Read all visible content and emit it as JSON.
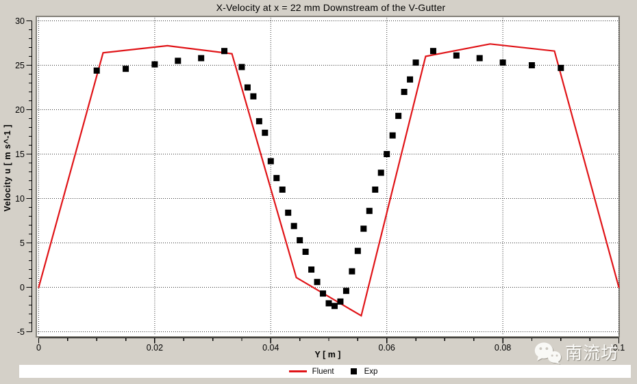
{
  "window": {
    "background_color": "#d4d0c8",
    "plot_background_color": "#ffffff"
  },
  "chart_data": {
    "type": "line",
    "title": "X-Velocity at x = 22 mm Downstream of the V-Gutter",
    "xlabel": "Y [ m ]",
    "ylabel": "Velocity u [ m s^-1 ]",
    "xlim": [
      0,
      0.1
    ],
    "ylim": [
      -5,
      30
    ],
    "x_major_ticks": [
      0,
      0.02,
      0.04,
      0.06,
      0.08,
      0.1
    ],
    "x_tick_labels": [
      "0",
      "0.02",
      "0.04",
      "0.06",
      "0.08",
      "0.1"
    ],
    "x_minor_step": 0.005,
    "y_major_ticks": [
      -5,
      0,
      5,
      10,
      15,
      20,
      25,
      30
    ],
    "y_tick_labels": [
      "-5",
      "0",
      "5",
      "10",
      "15",
      "20",
      "25",
      "30"
    ],
    "y_minor_step": 1,
    "grid": "major-only-dotted-black",
    "legend_position": "bottom-center",
    "series": [
      {
        "name": "Fluent",
        "type": "line",
        "color": "#e01317",
        "points": [
          [
            0,
            0
          ],
          [
            0.0111,
            26.4
          ],
          [
            0.0222,
            27.2
          ],
          [
            0.0333,
            26.3
          ],
          [
            0.0444,
            1.1
          ],
          [
            0.0556,
            -3.2
          ],
          [
            0.0667,
            26.0
          ],
          [
            0.0778,
            27.4
          ],
          [
            0.0889,
            26.6
          ],
          [
            0.1,
            0
          ]
        ]
      },
      {
        "name": "Exp",
        "type": "scatter",
        "marker": "square",
        "color": "#000000",
        "points": [
          [
            0.01,
            24.4
          ],
          [
            0.015,
            24.6
          ],
          [
            0.02,
            25.1
          ],
          [
            0.024,
            25.5
          ],
          [
            0.028,
            25.8
          ],
          [
            0.032,
            26.6
          ],
          [
            0.035,
            24.8
          ],
          [
            0.036,
            22.5
          ],
          [
            0.037,
            21.5
          ],
          [
            0.038,
            18.7
          ],
          [
            0.039,
            17.4
          ],
          [
            0.04,
            14.2
          ],
          [
            0.041,
            12.3
          ],
          [
            0.042,
            11.0
          ],
          [
            0.043,
            8.4
          ],
          [
            0.044,
            6.9
          ],
          [
            0.045,
            5.3
          ],
          [
            0.046,
            4.0
          ],
          [
            0.047,
            2.0
          ],
          [
            0.048,
            0.6
          ],
          [
            0.049,
            -0.7
          ],
          [
            0.05,
            -1.8
          ],
          [
            0.051,
            -2.1
          ],
          [
            0.052,
            -1.6
          ],
          [
            0.053,
            -0.4
          ],
          [
            0.054,
            1.8
          ],
          [
            0.055,
            4.1
          ],
          [
            0.056,
            6.6
          ],
          [
            0.057,
            8.6
          ],
          [
            0.058,
            11.0
          ],
          [
            0.059,
            12.9
          ],
          [
            0.06,
            15.0
          ],
          [
            0.061,
            17.1
          ],
          [
            0.062,
            19.3
          ],
          [
            0.063,
            22.0
          ],
          [
            0.064,
            23.4
          ],
          [
            0.065,
            25.3
          ],
          [
            0.068,
            26.6
          ],
          [
            0.072,
            26.1
          ],
          [
            0.076,
            25.8
          ],
          [
            0.08,
            25.3
          ],
          [
            0.085,
            25.0
          ],
          [
            0.09,
            24.7
          ]
        ]
      }
    ]
  },
  "watermark": {
    "icon": "wechat-icon",
    "text": "南流坊"
  }
}
